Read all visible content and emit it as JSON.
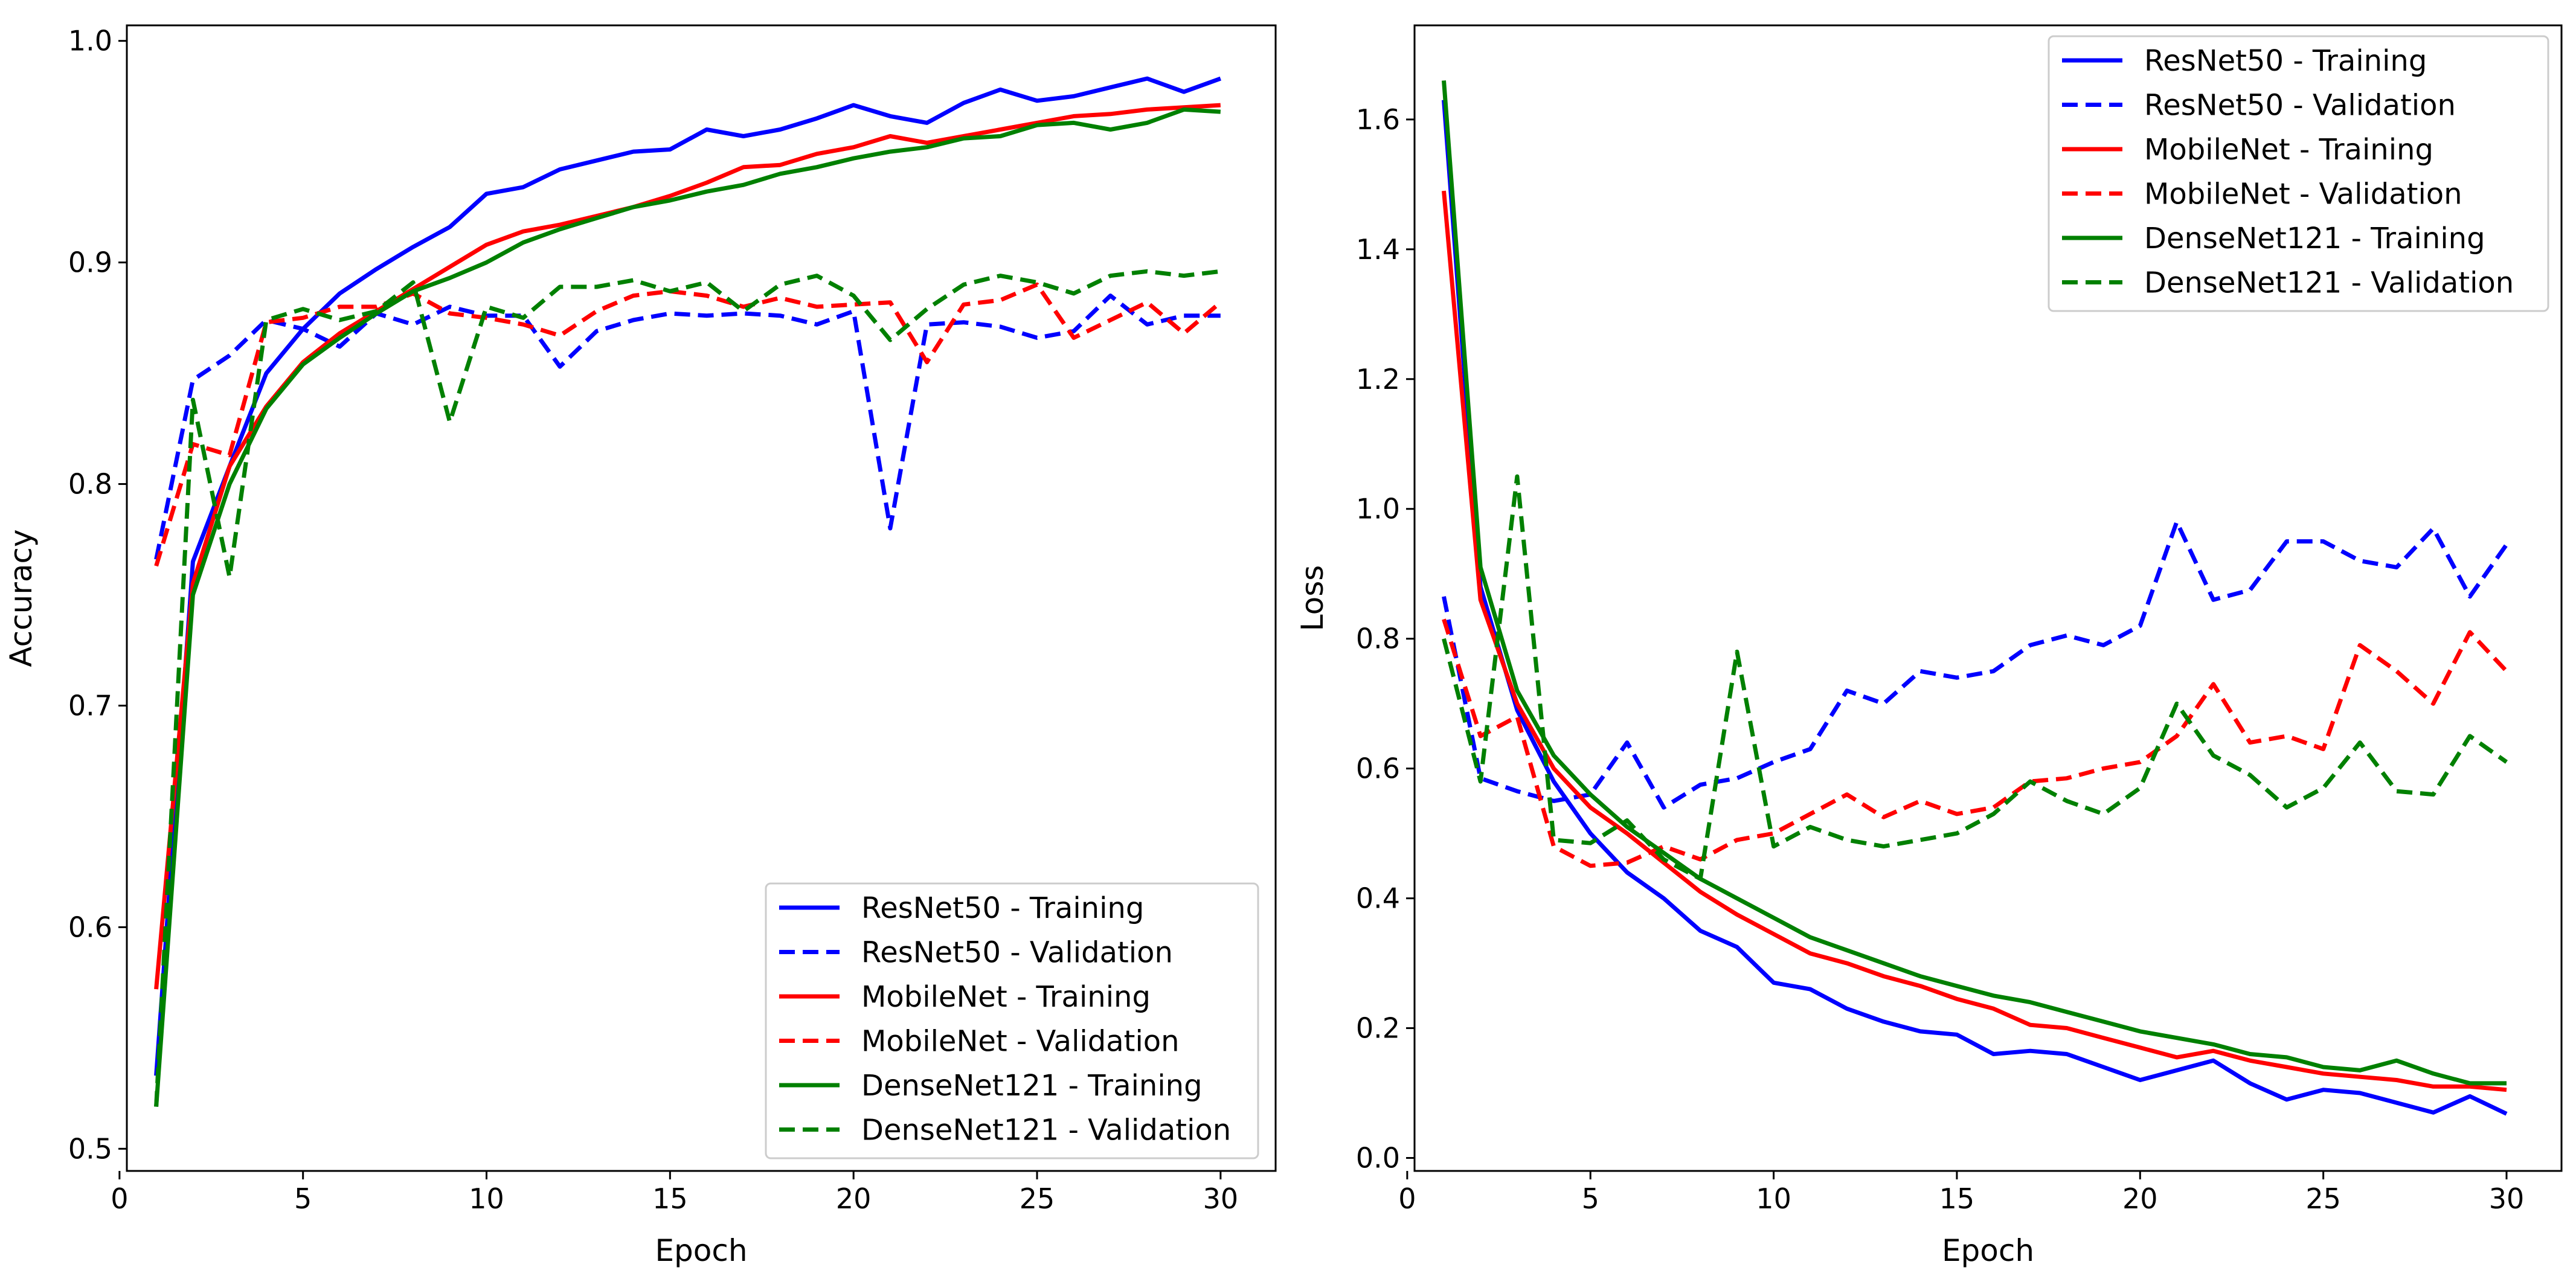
{
  "chart_data": [
    {
      "type": "line",
      "panel": "left",
      "title": "",
      "xlabel": "Epoch",
      "ylabel": "Accuracy",
      "xlim": [
        0.2,
        31.5
      ],
      "ylim": [
        0.49,
        1.007
      ],
      "xticks": [
        0,
        5,
        10,
        15,
        20,
        25,
        30
      ],
      "xtick_labels": [
        "0",
        "5",
        "10",
        "15",
        "20",
        "25",
        "30"
      ],
      "yticks": [
        0.5,
        0.6,
        0.7,
        0.8,
        0.9,
        1.0
      ],
      "ytick_labels": [
        "0.5",
        "0.6",
        "0.7",
        "0.8",
        "0.9",
        "1.0"
      ],
      "grid": false,
      "legend_position": "lower-right",
      "x": [
        1,
        2,
        3,
        4,
        5,
        6,
        7,
        8,
        9,
        10,
        11,
        12,
        13,
        14,
        15,
        16,
        17,
        18,
        19,
        20,
        21,
        22,
        23,
        24,
        25,
        26,
        27,
        28,
        29,
        30
      ],
      "series": [
        {
          "name": "ResNet50 - Training",
          "color": "#0000ff",
          "style": "solid",
          "values": [
            0.533,
            0.765,
            0.808,
            0.85,
            0.87,
            0.886,
            0.897,
            0.907,
            0.916,
            0.931,
            0.934,
            0.942,
            0.946,
            0.95,
            0.951,
            0.96,
            0.957,
            0.96,
            0.965,
            0.971,
            0.966,
            0.963,
            0.972,
            0.978,
            0.973,
            0.975,
            0.979,
            0.983,
            0.977,
            0.983
          ]
        },
        {
          "name": "ResNet50 - Validation",
          "color": "#0000ff",
          "style": "dashed",
          "values": [
            0.766,
            0.847,
            0.858,
            0.874,
            0.87,
            0.862,
            0.877,
            0.872,
            0.88,
            0.876,
            0.876,
            0.853,
            0.869,
            0.874,
            0.877,
            0.876,
            0.877,
            0.876,
            0.872,
            0.878,
            0.78,
            0.872,
            0.873,
            0.871,
            0.866,
            0.869,
            0.885,
            0.872,
            0.876,
            0.876
          ]
        },
        {
          "name": "MobileNet - Training",
          "color": "#ff0000",
          "style": "solid",
          "values": [
            0.572,
            0.755,
            0.808,
            0.835,
            0.855,
            0.868,
            0.878,
            0.888,
            0.898,
            0.908,
            0.914,
            0.917,
            0.921,
            0.925,
            0.93,
            0.936,
            0.943,
            0.944,
            0.949,
            0.952,
            0.957,
            0.954,
            0.957,
            0.96,
            0.963,
            0.966,
            0.967,
            0.969,
            0.97,
            0.971
          ]
        },
        {
          "name": "MobileNet - Validation",
          "color": "#ff0000",
          "style": "dashed",
          "values": [
            0.763,
            0.818,
            0.813,
            0.873,
            0.875,
            0.88,
            0.88,
            0.886,
            0.877,
            0.875,
            0.872,
            0.867,
            0.878,
            0.885,
            0.887,
            0.885,
            0.88,
            0.884,
            0.88,
            0.881,
            0.882,
            0.855,
            0.881,
            0.883,
            0.89,
            0.866,
            0.874,
            0.882,
            0.868,
            0.882
          ]
        },
        {
          "name": "DenseNet121 - Training",
          "color": "#008000",
          "style": "solid",
          "values": [
            0.519,
            0.75,
            0.8,
            0.834,
            0.854,
            0.866,
            0.877,
            0.887,
            0.893,
            0.9,
            0.909,
            0.915,
            0.92,
            0.925,
            0.928,
            0.932,
            0.935,
            0.94,
            0.943,
            0.947,
            0.95,
            0.952,
            0.956,
            0.957,
            0.962,
            0.963,
            0.96,
            0.963,
            0.969,
            0.968
          ]
        },
        {
          "name": "DenseNet121 - Validation",
          "color": "#008000",
          "style": "dashed",
          "values": [
            0.519,
            0.838,
            0.758,
            0.874,
            0.879,
            0.874,
            0.878,
            0.891,
            0.828,
            0.88,
            0.875,
            0.889,
            0.889,
            0.892,
            0.887,
            0.891,
            0.878,
            0.89,
            0.894,
            0.885,
            0.865,
            0.879,
            0.89,
            0.894,
            0.891,
            0.886,
            0.894,
            0.896,
            0.894,
            0.896
          ]
        }
      ]
    },
    {
      "type": "line",
      "panel": "right",
      "title": "",
      "xlabel": "Epoch",
      "ylabel": "Loss",
      "xlim": [
        0.2,
        31.5
      ],
      "ylim": [
        -0.02,
        1.745
      ],
      "xticks": [
        0,
        5,
        10,
        15,
        20,
        25,
        30
      ],
      "xtick_labels": [
        "0",
        "5",
        "10",
        "15",
        "20",
        "25",
        "30"
      ],
      "yticks": [
        0.0,
        0.2,
        0.4,
        0.6,
        0.8,
        1.0,
        1.2,
        1.4,
        1.6
      ],
      "ytick_labels": [
        "0.0",
        "0.2",
        "0.4",
        "0.6",
        "0.8",
        "1.0",
        "1.2",
        "1.4",
        "1.6"
      ],
      "grid": false,
      "legend_position": "upper-right",
      "x": [
        1,
        2,
        3,
        4,
        5,
        6,
        7,
        8,
        9,
        10,
        11,
        12,
        13,
        14,
        15,
        16,
        17,
        18,
        19,
        20,
        21,
        22,
        23,
        24,
        25,
        26,
        27,
        28,
        29,
        30
      ],
      "series": [
        {
          "name": "ResNet50 - Training",
          "color": "#0000ff",
          "style": "solid",
          "values": [
            1.63,
            0.88,
            0.69,
            0.58,
            0.5,
            0.44,
            0.4,
            0.35,
            0.325,
            0.27,
            0.26,
            0.23,
            0.21,
            0.195,
            0.19,
            0.16,
            0.165,
            0.16,
            0.14,
            0.12,
            0.135,
            0.15,
            0.115,
            0.09,
            0.105,
            0.1,
            0.085,
            0.07,
            0.095,
            0.068
          ]
        },
        {
          "name": "ResNet50 - Validation",
          "color": "#0000ff",
          "style": "dashed",
          "values": [
            0.865,
            0.585,
            0.565,
            0.55,
            0.56,
            0.64,
            0.54,
            0.575,
            0.585,
            0.61,
            0.63,
            0.72,
            0.7,
            0.75,
            0.74,
            0.75,
            0.79,
            0.805,
            0.79,
            0.82,
            0.98,
            0.86,
            0.875,
            0.95,
            0.95,
            0.92,
            0.91,
            0.97,
            0.865,
            0.945
          ]
        },
        {
          "name": "MobileNet - Training",
          "color": "#ff0000",
          "style": "solid",
          "values": [
            1.49,
            0.86,
            0.7,
            0.6,
            0.54,
            0.5,
            0.455,
            0.41,
            0.375,
            0.345,
            0.315,
            0.3,
            0.28,
            0.265,
            0.245,
            0.23,
            0.205,
            0.2,
            0.185,
            0.17,
            0.155,
            0.165,
            0.15,
            0.14,
            0.13,
            0.125,
            0.12,
            0.11,
            0.11,
            0.105
          ]
        },
        {
          "name": "MobileNet - Validation",
          "color": "#ff0000",
          "style": "dashed",
          "values": [
            0.83,
            0.65,
            0.68,
            0.48,
            0.45,
            0.455,
            0.48,
            0.46,
            0.49,
            0.5,
            0.53,
            0.56,
            0.525,
            0.55,
            0.53,
            0.54,
            0.58,
            0.585,
            0.6,
            0.61,
            0.65,
            0.73,
            0.64,
            0.65,
            0.63,
            0.79,
            0.75,
            0.7,
            0.81,
            0.75
          ]
        },
        {
          "name": "DenseNet121 - Training",
          "color": "#008000",
          "style": "solid",
          "values": [
            1.66,
            0.91,
            0.72,
            0.62,
            0.56,
            0.51,
            0.47,
            0.43,
            0.4,
            0.37,
            0.34,
            0.32,
            0.3,
            0.28,
            0.265,
            0.25,
            0.24,
            0.225,
            0.21,
            0.195,
            0.185,
            0.175,
            0.16,
            0.155,
            0.14,
            0.135,
            0.15,
            0.13,
            0.115,
            0.115
          ]
        },
        {
          "name": "DenseNet121 - Validation",
          "color": "#008000",
          "style": "dashed",
          "values": [
            0.8,
            0.58,
            1.05,
            0.49,
            0.485,
            0.52,
            0.46,
            0.43,
            0.78,
            0.48,
            0.51,
            0.49,
            0.48,
            0.49,
            0.5,
            0.53,
            0.58,
            0.55,
            0.53,
            0.57,
            0.7,
            0.62,
            0.59,
            0.54,
            0.57,
            0.64,
            0.565,
            0.56,
            0.65,
            0.61
          ]
        }
      ]
    }
  ]
}
